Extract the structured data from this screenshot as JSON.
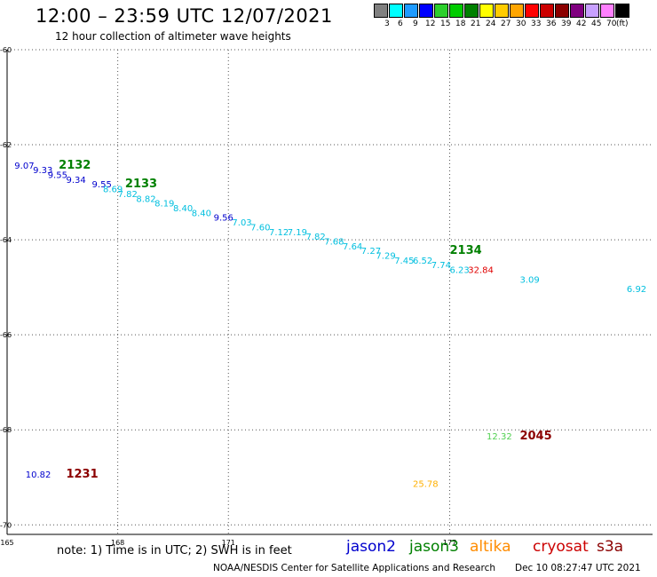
{
  "header": {
    "title": "12:00 – 23:59 UTC 12/07/2021",
    "subtitle": "12 hour collection of altimeter wave heights"
  },
  "colorbar": {
    "colors": [
      "#808080",
      "#00ffff",
      "#1e9bff",
      "#0000ff",
      "#2ccf2c",
      "#00cc00",
      "#008000",
      "#ffff00",
      "#ffcc00",
      "#ffa500",
      "#ff0000",
      "#cc0000",
      "#8b0000",
      "#800080",
      "#c8a0ff",
      "#ff80ff",
      "#000000"
    ],
    "labels": [
      "3",
      "6",
      "9",
      "12",
      "15",
      "18",
      "21",
      "24",
      "27",
      "30",
      "33",
      "36",
      "39",
      "42",
      "45",
      "70",
      "(ft)"
    ]
  },
  "map": {
    "lon_range": [
      165,
      182.5
    ],
    "lat_range": [
      -60,
      -70.2
    ],
    "lon_ticks": [
      165,
      168,
      171,
      -174,
      177
    ],
    "lat_ticks": [
      -60,
      -62,
      -64,
      -66,
      -68,
      -70
    ]
  },
  "passes": [
    {
      "label": "2132",
      "lon": 166.4,
      "lat": -62.5,
      "color": "#008000"
    },
    {
      "label": "2133",
      "lon": 168.2,
      "lat": -62.9,
      "color": "#008000"
    },
    {
      "label": "2134",
      "lon": 177.0,
      "lat": -64.3,
      "color": "#008000"
    },
    {
      "label": "1231",
      "lon": 166.6,
      "lat": -69.0,
      "color": "#8b0000"
    },
    {
      "label": "2045",
      "lon": 178.9,
      "lat": -68.2,
      "color": "#8b0000"
    }
  ],
  "observations": [
    {
      "value": "9.07",
      "lon": 165.2,
      "lat": -62.5,
      "color": "#0000cd"
    },
    {
      "value": "9.33",
      "lon": 165.7,
      "lat": -62.6,
      "color": "#0000cd"
    },
    {
      "value": "9.55",
      "lon": 166.1,
      "lat": -62.7,
      "color": "#0000cd"
    },
    {
      "value": "9.34",
      "lon": 166.6,
      "lat": -62.8,
      "color": "#0000cd"
    },
    {
      "value": "9.55",
      "lon": 167.3,
      "lat": -62.9,
      "color": "#0000cd"
    },
    {
      "value": "8.69",
      "lon": 167.6,
      "lat": -63.0,
      "color": "#00bfdf"
    },
    {
      "value": "7.82",
      "lon": 168.0,
      "lat": -63.1,
      "color": "#00bfdf"
    },
    {
      "value": "8.82",
      "lon": 168.5,
      "lat": -63.2,
      "color": "#00bfdf"
    },
    {
      "value": "8.19",
      "lon": 169.0,
      "lat": -63.3,
      "color": "#00bfdf"
    },
    {
      "value": "8.40",
      "lon": 169.5,
      "lat": -63.4,
      "color": "#00bfdf"
    },
    {
      "value": "8.40",
      "lon": 170.0,
      "lat": -63.5,
      "color": "#00bfdf"
    },
    {
      "value": "9.56",
      "lon": 170.6,
      "lat": -63.6,
      "color": "#0000cd"
    },
    {
      "value": "7.03",
      "lon": 171.1,
      "lat": -63.7,
      "color": "#00bfdf"
    },
    {
      "value": "7.60",
      "lon": 171.6,
      "lat": -63.8,
      "color": "#00bfdf"
    },
    {
      "value": "7.12",
      "lon": 172.1,
      "lat": -63.9,
      "color": "#00bfdf"
    },
    {
      "value": "7.19",
      "lon": 172.6,
      "lat": -63.9,
      "color": "#00bfdf"
    },
    {
      "value": "7.82",
      "lon": 173.1,
      "lat": -64.0,
      "color": "#00bfdf"
    },
    {
      "value": "7.68",
      "lon": 173.6,
      "lat": -64.1,
      "color": "#00bfdf"
    },
    {
      "value": "7.64",
      "lon": 174.1,
      "lat": -64.2,
      "color": "#00bfdf"
    },
    {
      "value": "7.27",
      "lon": 174.6,
      "lat": -64.3,
      "color": "#00bfdf"
    },
    {
      "value": "7.29",
      "lon": 175.0,
      "lat": -64.4,
      "color": "#00bfdf"
    },
    {
      "value": "7.45",
      "lon": 175.5,
      "lat": -64.5,
      "color": "#00bfdf"
    },
    {
      "value": "6.52",
      "lon": 176.0,
      "lat": -64.5,
      "color": "#00bfdf"
    },
    {
      "value": "7.74",
      "lon": 176.5,
      "lat": -64.6,
      "color": "#00bfdf"
    },
    {
      "value": "6.23",
      "lon": 177.0,
      "lat": -64.7,
      "color": "#00bfdf"
    },
    {
      "value": "32.84",
      "lon": 177.5,
      "lat": -64.7,
      "color": "#e00000"
    },
    {
      "value": "3.09",
      "lon": 178.9,
      "lat": -64.9,
      "color": "#00bfdf"
    },
    {
      "value": "6.92",
      "lon": 181.8,
      "lat": -65.1,
      "color": "#00bfdf"
    },
    {
      "value": "10.82",
      "lon": 165.5,
      "lat": -69.0,
      "color": "#0000cd"
    },
    {
      "value": "12.32",
      "lon": 178.0,
      "lat": -68.2,
      "color": "#50d050"
    },
    {
      "value": "25.78",
      "lon": 176.0,
      "lat": -69.2,
      "color": "#ffb000"
    }
  ],
  "footer": {
    "note": "note:  1) Time is in UTC;  2) SWH is in feet",
    "legend": [
      {
        "name": "jason2",
        "color": "#0000cd"
      },
      {
        "name": "jason3",
        "color": "#008000"
      },
      {
        "name": "altika",
        "color": "#ff8c00"
      },
      {
        "name": "cryosat",
        "color": "#cc0000"
      },
      {
        "name": "s3a",
        "color": "#8b0000"
      }
    ],
    "credit": "NOAA/NESDIS Center for Satellite Applications and Research",
    "date": "Dec 10 08:27:47 UTC 2021"
  }
}
